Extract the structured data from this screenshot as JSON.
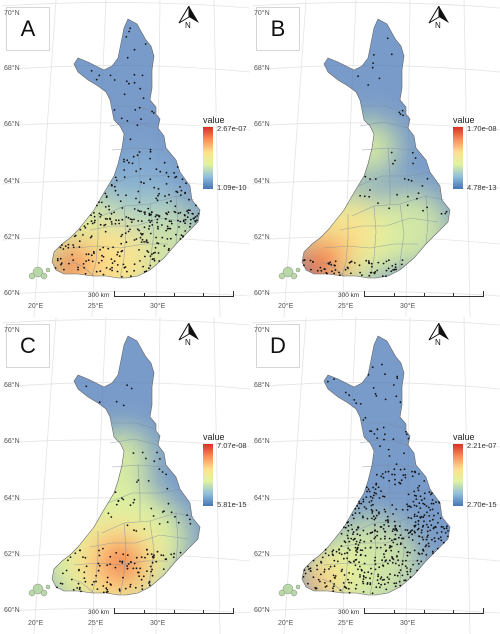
{
  "axes": {
    "lat_labels": [
      "70°N",
      "68°N",
      "66°N",
      "64°N",
      "62°N",
      "60°N"
    ],
    "lon_labels": [
      "20°E",
      "25°E",
      "30°E"
    ]
  },
  "north_arrow": {
    "letter": "N",
    "icon": "north-arrow-icon"
  },
  "scalebar": {
    "label": "300 km"
  },
  "legend_title": "value",
  "colormap": [
    "#4575b4",
    "#91bfdb",
    "#e0f3a0",
    "#fee08b",
    "#fc8d59",
    "#d73027"
  ],
  "panels": [
    {
      "label": "A",
      "legend": {
        "max": "2.67e-07",
        "min": "1.09e-10"
      },
      "hotspot": "southwest coast (Turku / Helsinki region)",
      "point_density": "dense in south, scattered north"
    },
    {
      "label": "B",
      "legend": {
        "max": "1.70e-08",
        "min": "4.78e-13"
      },
      "hotspot": "southwest coast, secondary around Oulu",
      "point_density": "sparse throughout"
    },
    {
      "label": "C",
      "legend": {
        "max": "7.07e-08",
        "min": "5.81e-15"
      },
      "hotspot": "south-central (Tampere region)",
      "point_density": "sparse, clustered in south"
    },
    {
      "label": "D",
      "legend": {
        "max": "2.21e-07",
        "min": "2.70e-15"
      },
      "hotspot": "southwest coast",
      "point_density": "dense in south and central"
    }
  ]
}
